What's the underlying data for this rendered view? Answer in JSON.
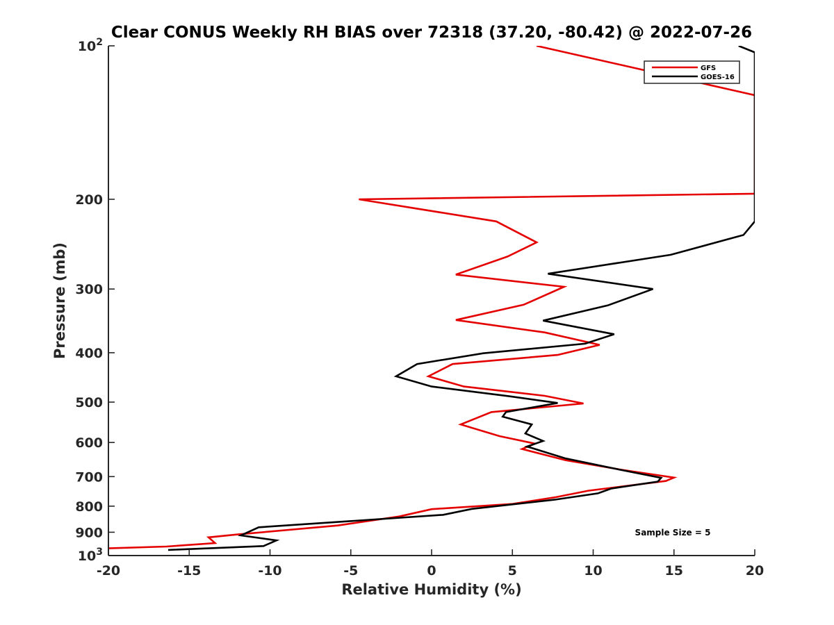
{
  "chart_data": {
    "type": "line",
    "title": "Clear CONUS Weekly RH BIAS over 72318 (37.20, -80.42) @ 2022-07-26",
    "xlabel": "Relative Humidity (%)",
    "ylabel": "Pressure (mb)",
    "xlim": [
      -20,
      20
    ],
    "ylim": [
      100,
      1000
    ],
    "y_scale": "log",
    "y_reversed": true,
    "grid": false,
    "legend_position": "top-right",
    "x_ticks": [
      "-20",
      "-15",
      "-10",
      "-5",
      "0",
      "5",
      "10",
      "15",
      "20"
    ],
    "y_ticks": [
      {
        "value": 100,
        "base": "10",
        "exp": "2"
      },
      {
        "value": 200,
        "label": "200"
      },
      {
        "value": 300,
        "label": "300"
      },
      {
        "value": 400,
        "label": "400"
      },
      {
        "value": 500,
        "label": "500"
      },
      {
        "value": 600,
        "label": "600"
      },
      {
        "value": 700,
        "label": "700"
      },
      {
        "value": 800,
        "label": "800"
      },
      {
        "value": 900,
        "label": "900"
      },
      {
        "value": 1000,
        "base": "10",
        "exp": "3"
      }
    ],
    "annotation": "Sample Size = 5",
    "series": [
      {
        "name": "GFS",
        "color": "#e50000",
        "points": [
          [
            6.5,
            100
          ],
          [
            20,
            125
          ],
          [
            20,
            195
          ],
          [
            -4.5,
            200
          ],
          [
            4,
            221
          ],
          [
            6.5,
            243
          ],
          [
            4.7,
            259
          ],
          [
            1.5,
            281
          ],
          [
            8.2,
            297
          ],
          [
            5.7,
            322
          ],
          [
            1.5,
            345
          ],
          [
            7.0,
            365
          ],
          [
            10.4,
            386
          ],
          [
            7.8,
            404
          ],
          [
            1.3,
            421
          ],
          [
            -0.2,
            445
          ],
          [
            2,
            466
          ],
          [
            7,
            486
          ],
          [
            9.4,
            503
          ],
          [
            3.7,
            523
          ],
          [
            1.8,
            553
          ],
          [
            4.2,
            583
          ],
          [
            6.4,
            603
          ],
          [
            5.6,
            618
          ],
          [
            8.3,
            650
          ],
          [
            11.8,
            679
          ],
          [
            15.0,
            703
          ],
          [
            14.5,
            714
          ],
          [
            9.7,
            746
          ],
          [
            7.7,
            768
          ],
          [
            5.0,
            792
          ],
          [
            0,
            811
          ],
          [
            -2,
            838
          ],
          [
            -5.8,
            873
          ],
          [
            -12,
            909
          ],
          [
            -13.8,
            921
          ],
          [
            -13.4,
            945
          ],
          [
            -16.4,
            960
          ],
          [
            -20,
            968
          ]
        ]
      },
      {
        "name": "GOES-16",
        "color": "#000000",
        "points": [
          [
            19,
            100
          ],
          [
            20,
            103
          ],
          [
            20,
            221
          ],
          [
            19.3,
            235
          ],
          [
            14.8,
            257
          ],
          [
            7.2,
            280
          ],
          [
            13.7,
            300
          ],
          [
            10.9,
            323
          ],
          [
            6.9,
            346
          ],
          [
            11.3,
            368
          ],
          [
            9.5,
            384
          ],
          [
            3.2,
            401
          ],
          [
            -0.9,
            421
          ],
          [
            -2.2,
            445
          ],
          [
            0,
            466
          ],
          [
            4.8,
            487
          ],
          [
            7.8,
            502
          ],
          [
            4.6,
            523
          ],
          [
            4.4,
            534
          ],
          [
            6.2,
            553
          ],
          [
            5.8,
            576
          ],
          [
            6.9,
            596
          ],
          [
            5.9,
            611
          ],
          [
            8.3,
            645
          ],
          [
            11.6,
            678
          ],
          [
            14.2,
            704
          ],
          [
            14.0,
            716
          ],
          [
            11.1,
            739
          ],
          [
            10.3,
            755
          ],
          [
            7.6,
            777
          ],
          [
            2.5,
            810
          ],
          [
            0.7,
            832
          ],
          [
            -10.7,
            880
          ],
          [
            -11.8,
            913
          ],
          [
            -9.6,
            934
          ],
          [
            -10.4,
            958
          ],
          [
            -16.3,
            975
          ]
        ]
      }
    ]
  }
}
